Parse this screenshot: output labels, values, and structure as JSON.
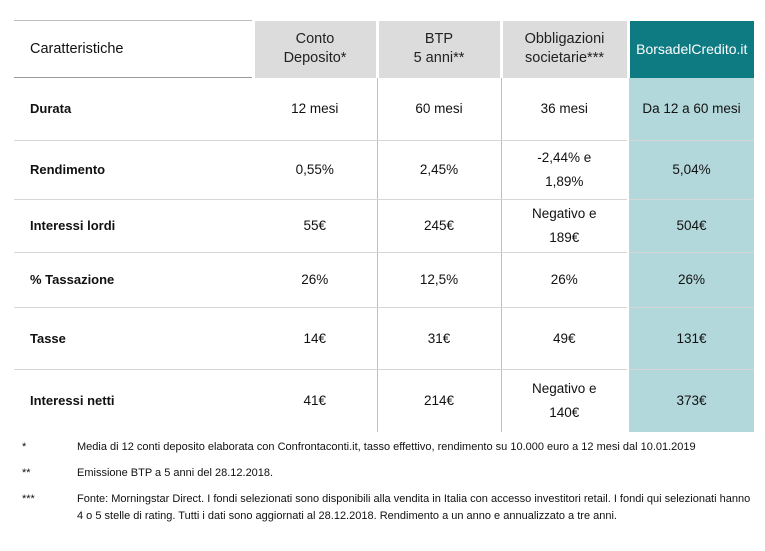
{
  "header": {
    "label": "Caratteristiche",
    "col1_line1": "Conto",
    "col1_line2": "Deposito*",
    "col2_line1": "BTP",
    "col2_line2": "5 anni**",
    "col3_line1": "Obbligazioni",
    "col3_line2": "societarie***",
    "col4": "BorsadelCredito.it"
  },
  "rows": [
    {
      "label": "Durata",
      "c1": "12 mesi",
      "c2": "60 mesi",
      "c3a": "36 mesi",
      "c3b": "",
      "c4": "Da 12 a 60 mesi"
    },
    {
      "label": "Rendimento",
      "c1": "0,55%",
      "c2": "2,45%",
      "c3a": "-2,44% e",
      "c3b": "1,89%",
      "c4": "5,04%"
    },
    {
      "label": "Interessi lordi",
      "c1": "55€",
      "c2": "245€",
      "c3a": "Negativo e",
      "c3b": "189€",
      "c4": "504€"
    },
    {
      "label": "% Tassazione",
      "c1": "26%",
      "c2": "12,5%",
      "c3a": "26%",
      "c3b": "",
      "c4": "26%"
    },
    {
      "label": "Tasse",
      "c1": "14€",
      "c2": "31€",
      "c3a": "49€",
      "c3b": "",
      "c4": "131€"
    },
    {
      "label": "Interessi netti",
      "c1": "41€",
      "c2": "214€",
      "c3a": "Negativo e",
      "c3b": "140€",
      "c4": "373€"
    }
  ],
  "notes": [
    {
      "mark": "*",
      "text": "Media di 12 conti deposito elaborata con Confrontaconti.it, tasso effettivo, rendimento su 10.000 euro a 12 mesi dal 10.01.2019"
    },
    {
      "mark": "**",
      "text": "Emissione BTP a 5 anni del 28.12.2018."
    },
    {
      "mark": "***",
      "text": "Fonte: Morningstar Direct. I fondi selezionati sono disponibili alla vendita in Italia con accesso investitori retail. I fondi qui selezionati hanno 4 o 5 stelle di rating. Tutti i dati sono aggiornati al 28.12.2018. Rendimento a un anno e annualizzato a tre anni."
    }
  ],
  "colors": {
    "brand": "#0e7a82",
    "highlight": "#b3d8db",
    "header_grey": "#dcdcdc"
  }
}
